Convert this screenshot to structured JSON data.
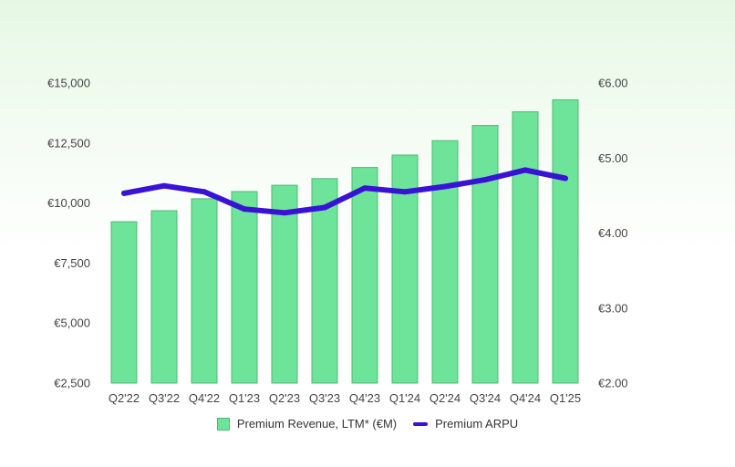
{
  "colors": {
    "bar_fill": "#6ee39a",
    "bar_stroke": "#4fb874",
    "line": "#3a12d6",
    "axis_text": "#444444"
  },
  "chart_data": {
    "type": "bar",
    "title": "",
    "xlabel": "",
    "ylabel": "",
    "categories": [
      "Q2'22",
      "Q3'22",
      "Q4'22",
      "Q1'23",
      "Q2'23",
      "Q3'23",
      "Q4'23",
      "Q1'24",
      "Q2'24",
      "Q3'24",
      "Q4'24",
      "Q1'25"
    ],
    "ylim": [
      2500,
      15000
    ],
    "y_ticks": [
      2500,
      5000,
      7500,
      10000,
      12500,
      15000
    ],
    "y_tick_labels": [
      "€2,500",
      "€5,000",
      "€7,500",
      "€10,000",
      "€12,500",
      "€15,000"
    ],
    "y2lim": [
      2.0,
      6.0
    ],
    "y2_ticks": [
      2.0,
      3.0,
      4.0,
      5.0,
      6.0
    ],
    "y2_tick_labels": [
      "€2.00",
      "€3.00",
      "€4.00",
      "€5.00",
      "€6.00"
    ],
    "grid": false,
    "legend_position": "bottom",
    "series": [
      {
        "name": "Premium Revenue, LTM* (€M)",
        "type": "bar",
        "axis": "left",
        "values": [
          9220,
          9680,
          10180,
          10480,
          10740,
          11020,
          11480,
          12000,
          12600,
          13230,
          13800,
          14300
        ]
      },
      {
        "name": "Premium ARPU",
        "type": "line",
        "axis": "right",
        "values": [
          4.53,
          4.63,
          4.55,
          4.32,
          4.27,
          4.34,
          4.6,
          4.55,
          4.62,
          4.71,
          4.84,
          4.73
        ]
      }
    ]
  }
}
